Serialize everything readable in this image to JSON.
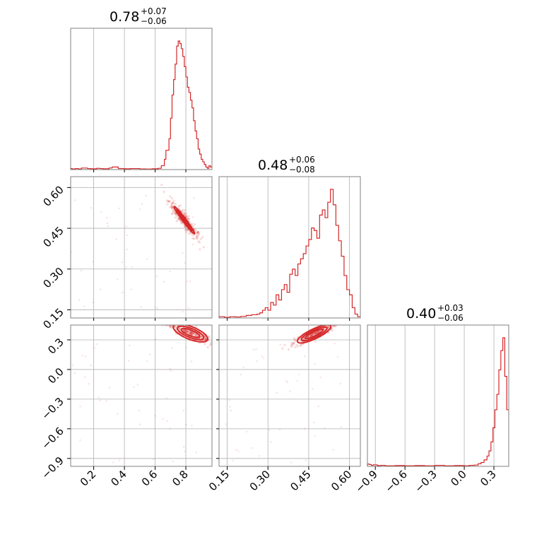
{
  "chart_data": {
    "type": "corner",
    "color": "#d62728",
    "parameters": [
      {
        "range": [
          0.05,
          0.97
        ],
        "ticks": [
          0.2,
          0.4,
          0.6,
          0.8
        ],
        "tick_labels": [
          "0.2",
          "0.4",
          "0.6",
          "0.8"
        ],
        "title": {
          "median": "0.78",
          "plus": "+0.07",
          "minus": "−0.06"
        }
      },
      {
        "range": [
          0.12,
          0.64
        ],
        "ticks": [
          0.15,
          0.3,
          0.45,
          0.6
        ],
        "tick_labels": [
          "0.15",
          "0.30",
          "0.45",
          "0.60"
        ],
        "title": {
          "median": "0.48",
          "plus": "+0.06",
          "minus": "−0.08"
        }
      },
      {
        "range": [
          -0.98,
          0.45
        ],
        "ticks": [
          -0.9,
          -0.6,
          -0.3,
          0.0,
          0.3
        ],
        "tick_labels": [
          "−0.9",
          "−0.6",
          "−0.3",
          "0.0",
          "0.3"
        ],
        "title": {
          "median": "0.40",
          "plus": "+0.03",
          "minus": "−0.06"
        }
      }
    ],
    "histograms": [
      {
        "x": [
          0.05,
          0.06,
          0.08,
          0.1,
          0.12,
          0.16,
          0.18,
          0.22,
          0.24,
          0.26,
          0.3,
          0.32,
          0.36,
          0.4,
          0.44,
          0.5,
          0.54,
          0.58,
          0.62,
          0.64,
          0.66,
          0.67,
          0.69,
          0.7,
          0.71,
          0.72,
          0.73,
          0.74,
          0.75,
          0.76,
          0.77,
          0.78,
          0.79,
          0.8,
          0.81,
          0.82,
          0.83,
          0.84,
          0.85,
          0.86,
          0.87,
          0.88,
          0.89,
          0.9,
          0.91,
          0.92,
          0.93,
          0.94,
          0.95,
          0.96
        ],
        "y": [
          0.008,
          0.005,
          0.008,
          0.005,
          0.012,
          0.008,
          0.006,
          0.01,
          0.008,
          0.006,
          0.012,
          0.02,
          0.008,
          0.006,
          0.008,
          0.005,
          0.004,
          0.006,
          0.01,
          0.03,
          0.08,
          0.15,
          0.24,
          0.4,
          0.58,
          0.7,
          0.82,
          0.96,
          1.0,
          0.98,
          0.94,
          0.88,
          0.8,
          0.72,
          0.64,
          0.6,
          0.54,
          0.48,
          0.38,
          0.3,
          0.24,
          0.16,
          0.12,
          0.08,
          0.06,
          0.04,
          0.02,
          0.01,
          0.03,
          0.02
        ]
      },
      {
        "x": [
          0.12,
          0.14,
          0.16,
          0.18,
          0.2,
          0.22,
          0.24,
          0.26,
          0.27,
          0.28,
          0.29,
          0.3,
          0.31,
          0.32,
          0.33,
          0.34,
          0.35,
          0.36,
          0.37,
          0.38,
          0.39,
          0.4,
          0.41,
          0.42,
          0.43,
          0.44,
          0.45,
          0.46,
          0.47,
          0.48,
          0.49,
          0.5,
          0.51,
          0.52,
          0.53,
          0.54,
          0.55,
          0.56,
          0.57,
          0.58,
          0.59,
          0.6,
          0.61,
          0.62,
          0.63
        ],
        "y": [
          0.01,
          0.005,
          0.01,
          0.008,
          0.012,
          0.02,
          0.025,
          0.03,
          0.04,
          0.06,
          0.08,
          0.06,
          0.12,
          0.1,
          0.18,
          0.14,
          0.22,
          0.26,
          0.2,
          0.34,
          0.38,
          0.33,
          0.42,
          0.46,
          0.5,
          0.56,
          0.61,
          0.7,
          0.68,
          0.62,
          0.8,
          0.84,
          0.78,
          0.9,
          1.0,
          0.88,
          0.72,
          0.6,
          0.48,
          0.33,
          0.22,
          0.18,
          0.08,
          0.03,
          0.01
        ]
      },
      {
        "x": [
          -0.98,
          -0.96,
          -0.94,
          -0.92,
          -0.88,
          -0.84,
          -0.8,
          -0.7,
          -0.6,
          -0.5,
          -0.4,
          -0.3,
          -0.2,
          -0.1,
          0.0,
          0.05,
          0.1,
          0.14,
          0.17,
          0.2,
          0.23,
          0.25,
          0.27,
          0.29,
          0.31,
          0.33,
          0.35,
          0.37,
          0.39,
          0.41,
          0.43,
          0.44
        ],
        "y": [
          0.018,
          0.014,
          0.008,
          0.012,
          0.006,
          0.008,
          0.004,
          0.006,
          0.004,
          0.006,
          0.004,
          0.008,
          0.004,
          0.006,
          0.004,
          0.008,
          0.01,
          0.02,
          0.03,
          0.05,
          0.08,
          0.12,
          0.19,
          0.3,
          0.44,
          0.56,
          0.75,
          0.9,
          1.0,
          0.7,
          0.44,
          0.44
        ]
      }
    ],
    "joint_contours": [
      {
        "xi": 0,
        "yi": 1,
        "cx": 0.79,
        "cy": 0.48,
        "u": [
          0.6,
          -0.8
        ],
        "levels": [
          [
            0.12,
            0.012
          ],
          [
            0.09,
            0.008
          ],
          [
            0.06,
            0.005
          ]
        ]
      },
      {
        "xi": 0,
        "yi": 2,
        "cx": 0.83,
        "cy": 0.37,
        "u": [
          0.93,
          -0.37
        ],
        "levels": [
          [
            0.13,
            0.045
          ],
          [
            0.1,
            0.032
          ],
          [
            0.07,
            0.02
          ]
        ]
      },
      {
        "xi": 1,
        "yi": 2,
        "cx": 0.47,
        "cy": 0.36,
        "u": [
          0.9,
          0.43
        ],
        "levels": [
          [
            0.13,
            0.035
          ],
          [
            0.1,
            0.025
          ],
          [
            0.07,
            0.015
          ]
        ]
      }
    ],
    "grid": true
  }
}
